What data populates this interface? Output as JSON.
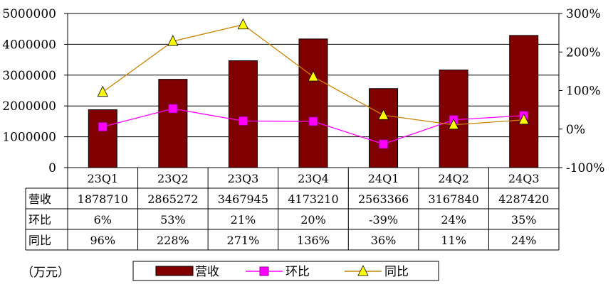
{
  "chart_data": {
    "type": "bar",
    "categories": [
      "23Q1",
      "23Q2",
      "23Q3",
      "23Q4",
      "24Q1",
      "24Q2",
      "24Q3"
    ],
    "series": [
      {
        "name": "营收",
        "kind": "bar",
        "axis": "left",
        "values": [
          1878710,
          2865272,
          3467945,
          4173210,
          2563366,
          3167840,
          4287420
        ]
      },
      {
        "name": "环比",
        "kind": "line",
        "axis": "right",
        "marker": "square",
        "values": [
          6,
          53,
          21,
          20,
          -39,
          24,
          35
        ]
      },
      {
        "name": "同比",
        "kind": "line",
        "axis": "right",
        "marker": "triangle",
        "values": [
          96,
          228,
          271,
          136,
          36,
          11,
          24
        ]
      }
    ],
    "left_axis": {
      "min": 0,
      "max": 5000000,
      "ticks": [
        "0",
        "1000000",
        "2000000",
        "3000000",
        "4000000",
        "5000000"
      ]
    },
    "right_axis": {
      "min": -100,
      "max": 300,
      "ticks": [
        "-100%",
        "0%",
        "100%",
        "200%",
        "300%"
      ]
    },
    "table": {
      "row_labels": [
        "营收",
        "环比",
        "同比"
      ],
      "rows": [
        [
          "1878710",
          "2865272",
          "3467945",
          "4173210",
          "2563366",
          "3167840",
          "4287420"
        ],
        [
          "6%",
          "53%",
          "21%",
          "20%",
          "-39%",
          "24%",
          "35%"
        ],
        [
          "96%",
          "228%",
          "271%",
          "136%",
          "36%",
          "11%",
          "24%"
        ]
      ]
    },
    "unit_label": "（万元）",
    "legend": [
      "营收",
      "环比",
      "同比"
    ],
    "grid": true,
    "colors": {
      "bar": "#800000",
      "qoq": "#ff00ff",
      "yoy_line": "#cc8400",
      "yoy_marker": "#ffff00"
    }
  }
}
